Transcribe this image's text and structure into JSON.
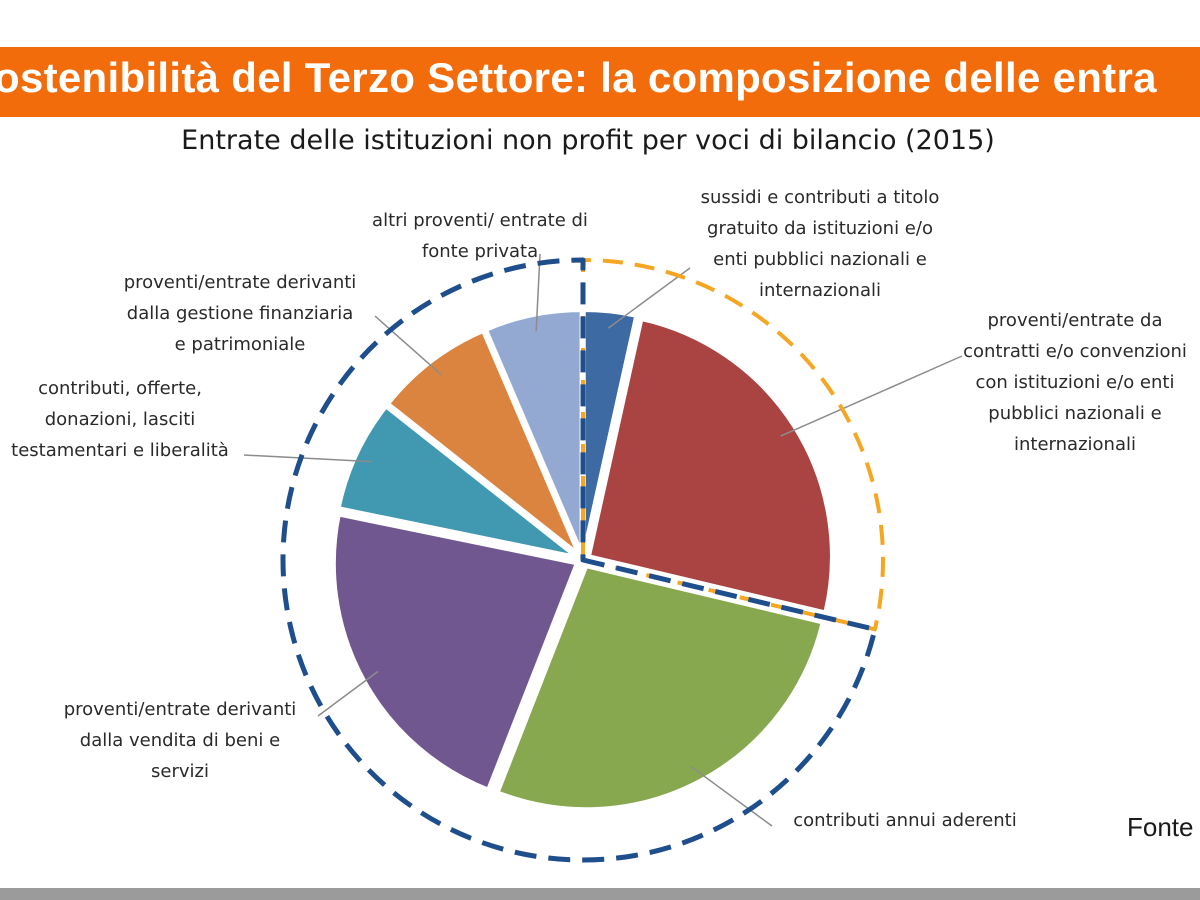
{
  "header": {
    "banner_title": "ostenibilità del Terzo Settore: la composizione delle entra",
    "banner_color": "#f26c0c"
  },
  "chart_data": {
    "type": "pie",
    "title": "Entrate delle istituzioni non profit per voci di bilancio (2015)",
    "labels": [
      "sussidi e contributi a titolo\ngratuito da istituzioni e/o\nenti pubblici nazionali e\ninternazionali",
      "proventi/entrate da\ncontratti e/o convenzioni\ncon istituzioni e/o enti\npubblici nazionali e\ninternazionali",
      "contributi annui aderenti",
      "proventi/entrate derivanti\ndalla vendita di beni e\nservizi",
      "contributi, offerte,\ndonazioni, lasciti\ntestamentari e liberalità",
      "proventi/entrate derivanti\ndalla gestione finanziaria\ne patrimoniale",
      "altri proventi/ entrate di\nfonte privata"
    ],
    "values": [
      3.5,
      25.5,
      27.5,
      22.5,
      7.5,
      8,
      6.5
    ],
    "colors": [
      "#3d6aa2",
      "#a94442",
      "#88a84f",
      "#715790",
      "#4099b0",
      "#db8440",
      "#93a9d2"
    ],
    "group_outlines": [
      {
        "group": "public",
        "color": "#f5a623"
      },
      {
        "group": "private",
        "color": "#1f4e8c"
      }
    ]
  },
  "source": {
    "text": "Fonte"
  }
}
